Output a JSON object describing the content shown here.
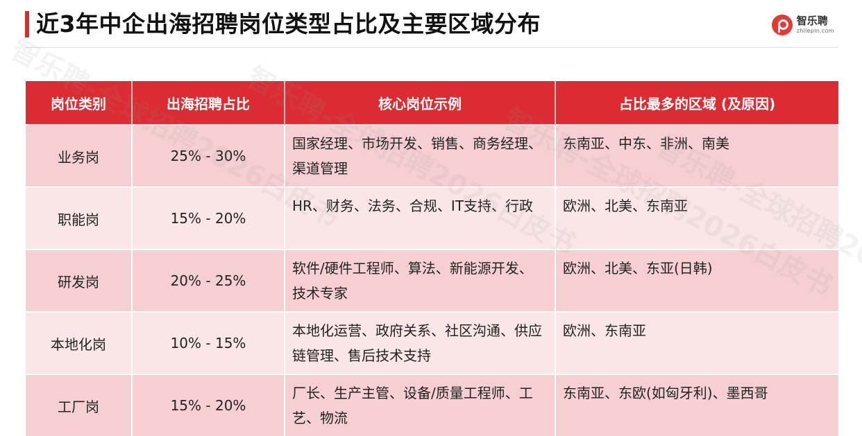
{
  "header": {
    "title": "近3年中企出海招聘岗位类型占比及主要区域分布",
    "logo_cn": "智乐聘",
    "logo_en": "zhilepin.com"
  },
  "table": {
    "columns": [
      "岗位类别",
      "出海招聘占比",
      "核心岗位示例",
      "占比最多的区域 (及原因)"
    ],
    "rows": [
      {
        "category": "业务岗",
        "ratio": "25% - 30%",
        "examples": "国家经理、市场开发、销售、商务经理、渠道管理",
        "regions": "东南亚、中东、非洲、南美"
      },
      {
        "category": "职能岗",
        "ratio": "15% - 20%",
        "examples": "HR、财务、法务、合规、IT支持、行政",
        "regions": "欧洲、北美、东南亚"
      },
      {
        "category": "研发岗",
        "ratio": "20% - 25%",
        "examples": "软件/硬件工程师、算法、新能源开发、技术专家",
        "regions": "欧洲、北美、东亚(日韩)"
      },
      {
        "category": "本地化岗",
        "ratio": "10% - 15%",
        "examples": "本地化运营、政府关系、社区沟通、供应链管理、售后技术支持",
        "regions": "欧洲、东南亚"
      },
      {
        "category": "工厂岗",
        "ratio": "15% - 20%",
        "examples": "厂长、生产主管、设备/质量工程师、工艺、物流",
        "regions": "东南亚、东欧(如匈牙利)、墨西哥"
      }
    ]
  },
  "watermarks": [
    "智乐聘-全球招聘2026白皮书",
    "智乐聘-全球招聘2026白皮书",
    "智乐聘-全球招聘2026白皮书",
    "智乐聘-全球招聘2026白皮书"
  ],
  "colors": {
    "accent": "#d32f2f",
    "header_bg": "#da2c32",
    "row_dark": "#f5cfd2",
    "row_light": "#fae6e7"
  }
}
